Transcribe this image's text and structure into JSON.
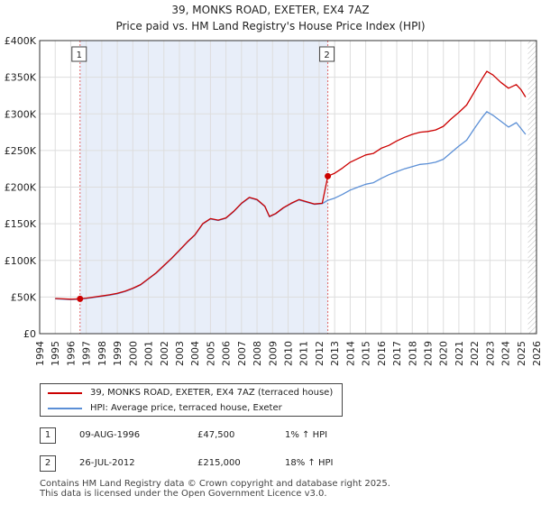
{
  "header": {
    "title": "39, MONKS ROAD, EXETER, EX4 7AZ",
    "subtitle": "Price paid vs. HM Land Registry's House Price Index (HPI)"
  },
  "colors": {
    "property": "#cc0000",
    "hpi": "#5b8fd6",
    "shade": "#e8eef9",
    "grid": "#dddddd",
    "marker_line": "#e06666"
  },
  "chart_data": {
    "type": "line",
    "title": "39, MONKS ROAD, EXETER, EX4 7AZ",
    "xlim": [
      1994,
      2026
    ],
    "ylim": [
      0,
      400000
    ],
    "x_ticks": [
      "1994",
      "1995",
      "1996",
      "1997",
      "1998",
      "1999",
      "2000",
      "2001",
      "2002",
      "2003",
      "2004",
      "2005",
      "2006",
      "2007",
      "2008",
      "2009",
      "2010",
      "2011",
      "2012",
      "2013",
      "2014",
      "2015",
      "2016",
      "2017",
      "2018",
      "2019",
      "2020",
      "2021",
      "2022",
      "2023",
      "2024",
      "2025",
      "2026"
    ],
    "y_ticks": [
      {
        "value": 0,
        "label": "£0"
      },
      {
        "value": 50000,
        "label": "£50K"
      },
      {
        "value": 100000,
        "label": "£100K"
      },
      {
        "value": 150000,
        "label": "£150K"
      },
      {
        "value": 200000,
        "label": "£200K"
      },
      {
        "value": 250000,
        "label": "£250K"
      },
      {
        "value": 300000,
        "label": "£300K"
      },
      {
        "value": 350000,
        "label": "£350K"
      },
      {
        "value": 400000,
        "label": "£400K"
      }
    ],
    "shaded_range": [
      1996.6,
      2012.56
    ],
    "series": [
      {
        "name": "39, MONKS ROAD, EXETER, EX4 7AZ (terraced house)",
        "color": "#cc0000",
        "points": [
          [
            1995.0,
            48000
          ],
          [
            1995.5,
            47500
          ],
          [
            1996.0,
            47000
          ],
          [
            1996.6,
            47500
          ],
          [
            1997.0,
            48500
          ],
          [
            1997.5,
            50000
          ],
          [
            1998.0,
            51500
          ],
          [
            1998.5,
            53000
          ],
          [
            1999.0,
            55000
          ],
          [
            1999.5,
            58000
          ],
          [
            2000.0,
            62000
          ],
          [
            2000.5,
            67000
          ],
          [
            2001.0,
            75000
          ],
          [
            2001.5,
            83000
          ],
          [
            2002.0,
            93000
          ],
          [
            2002.5,
            103000
          ],
          [
            2003.0,
            114000
          ],
          [
            2003.5,
            125000
          ],
          [
            2004.0,
            135000
          ],
          [
            2004.5,
            150000
          ],
          [
            2005.0,
            157000
          ],
          [
            2005.5,
            155000
          ],
          [
            2006.0,
            158000
          ],
          [
            2006.5,
            167000
          ],
          [
            2007.0,
            178000
          ],
          [
            2007.5,
            186000
          ],
          [
            2008.0,
            183000
          ],
          [
            2008.5,
            174000
          ],
          [
            2008.8,
            160000
          ],
          [
            2009.2,
            164000
          ],
          [
            2009.7,
            172000
          ],
          [
            2010.2,
            178000
          ],
          [
            2010.7,
            183000
          ],
          [
            2011.2,
            180000
          ],
          [
            2011.7,
            177000
          ],
          [
            2012.2,
            178000
          ],
          [
            2012.56,
            215000
          ],
          [
            2013.0,
            219000
          ],
          [
            2013.5,
            226000
          ],
          [
            2014.0,
            234000
          ],
          [
            2014.5,
            239000
          ],
          [
            2015.0,
            244000
          ],
          [
            2015.5,
            246000
          ],
          [
            2016.0,
            253000
          ],
          [
            2016.5,
            257000
          ],
          [
            2017.0,
            263000
          ],
          [
            2017.5,
            268000
          ],
          [
            2018.0,
            272000
          ],
          [
            2018.5,
            275000
          ],
          [
            2019.0,
            276000
          ],
          [
            2019.5,
            278000
          ],
          [
            2020.0,
            283000
          ],
          [
            2020.5,
            293000
          ],
          [
            2021.0,
            302000
          ],
          [
            2021.5,
            312000
          ],
          [
            2022.0,
            330000
          ],
          [
            2022.5,
            348000
          ],
          [
            2022.8,
            358000
          ],
          [
            2023.2,
            353000
          ],
          [
            2023.7,
            343000
          ],
          [
            2024.2,
            335000
          ],
          [
            2024.7,
            340000
          ],
          [
            2025.0,
            333000
          ],
          [
            2025.3,
            323000
          ]
        ]
      },
      {
        "name": "HPI: Average price, terraced house, Exeter",
        "color": "#5b8fd6",
        "points": [
          [
            1995.0,
            47500
          ],
          [
            1995.5,
            47000
          ],
          [
            1996.0,
            46500
          ],
          [
            1996.6,
            47000
          ],
          [
            1997.0,
            48000
          ],
          [
            1997.5,
            49500
          ],
          [
            1998.0,
            51000
          ],
          [
            1998.5,
            52500
          ],
          [
            1999.0,
            54500
          ],
          [
            1999.5,
            57500
          ],
          [
            2000.0,
            61500
          ],
          [
            2000.5,
            66500
          ],
          [
            2001.0,
            74500
          ],
          [
            2001.5,
            82500
          ],
          [
            2002.0,
            92500
          ],
          [
            2002.5,
            102500
          ],
          [
            2003.0,
            113500
          ],
          [
            2003.5,
            124500
          ],
          [
            2004.0,
            134500
          ],
          [
            2004.5,
            149500
          ],
          [
            2005.0,
            156500
          ],
          [
            2005.5,
            154500
          ],
          [
            2006.0,
            157500
          ],
          [
            2006.5,
            166500
          ],
          [
            2007.0,
            177500
          ],
          [
            2007.5,
            185500
          ],
          [
            2008.0,
            182500
          ],
          [
            2008.5,
            173500
          ],
          [
            2008.8,
            159500
          ],
          [
            2009.2,
            163500
          ],
          [
            2009.7,
            171500
          ],
          [
            2010.2,
            177500
          ],
          [
            2010.7,
            182500
          ],
          [
            2011.2,
            179500
          ],
          [
            2011.7,
            176500
          ],
          [
            2012.2,
            177500
          ],
          [
            2012.56,
            182000
          ],
          [
            2013.0,
            185000
          ],
          [
            2013.5,
            190000
          ],
          [
            2014.0,
            196000
          ],
          [
            2014.5,
            200000
          ],
          [
            2015.0,
            204000
          ],
          [
            2015.5,
            206000
          ],
          [
            2016.0,
            212000
          ],
          [
            2016.5,
            217000
          ],
          [
            2017.0,
            221000
          ],
          [
            2017.5,
            225000
          ],
          [
            2018.0,
            228000
          ],
          [
            2018.5,
            231000
          ],
          [
            2019.0,
            232000
          ],
          [
            2019.5,
            234000
          ],
          [
            2020.0,
            238000
          ],
          [
            2020.5,
            247000
          ],
          [
            2021.0,
            256000
          ],
          [
            2021.5,
            264000
          ],
          [
            2022.0,
            280000
          ],
          [
            2022.5,
            295000
          ],
          [
            2022.8,
            303000
          ],
          [
            2023.2,
            298000
          ],
          [
            2023.7,
            290000
          ],
          [
            2024.2,
            282000
          ],
          [
            2024.7,
            288000
          ],
          [
            2025.0,
            280000
          ],
          [
            2025.3,
            272000
          ]
        ]
      }
    ],
    "transactions": [
      {
        "marker": "1",
        "x": 1996.6,
        "price": 47500
      },
      {
        "marker": "2",
        "x": 2012.56,
        "price": 215000
      }
    ]
  },
  "legend": {
    "property_label": "39, MONKS ROAD, EXETER, EX4 7AZ (terraced house)",
    "hpi_label": "HPI: Average price, terraced house, Exeter"
  },
  "transactions_table": [
    {
      "marker": "1",
      "date": "09-AUG-1996",
      "price": "£47,500",
      "hpi": "1% ↑ HPI"
    },
    {
      "marker": "2",
      "date": "26-JUL-2012",
      "price": "£215,000",
      "hpi": "18% ↑ HPI"
    }
  ],
  "footer": {
    "line1": "Contains HM Land Registry data © Crown copyright and database right 2025.",
    "line2": "This data is licensed under the Open Government Licence v3.0."
  }
}
